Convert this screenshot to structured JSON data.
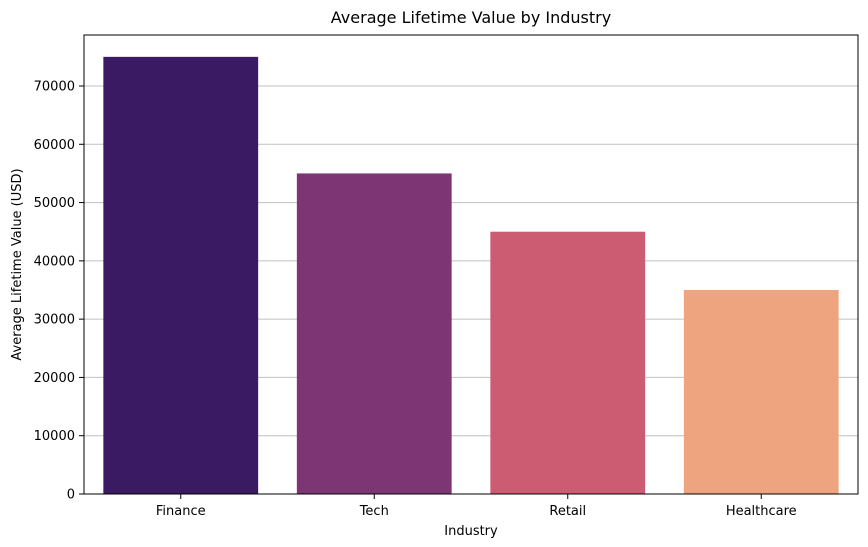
{
  "chart_data": {
    "type": "bar",
    "title": "Average Lifetime Value by Industry",
    "xlabel": "Industry",
    "ylabel": "Average Lifetime Value (USD)",
    "categories": [
      "Finance",
      "Tech",
      "Retail",
      "Healthcare"
    ],
    "values": [
      75000,
      55000,
      45000,
      35000
    ],
    "colors": [
      "#3b1a64",
      "#7e3574",
      "#cc5c72",
      "#eea47e"
    ],
    "ylim": [
      0,
      78750
    ],
    "yticks": [
      0,
      10000,
      20000,
      30000,
      40000,
      50000,
      60000,
      70000
    ],
    "ytick_labels": [
      "0",
      "10000",
      "20000",
      "30000",
      "40000",
      "50000",
      "60000",
      "70000"
    ],
    "grid": "y",
    "legend": "none"
  }
}
